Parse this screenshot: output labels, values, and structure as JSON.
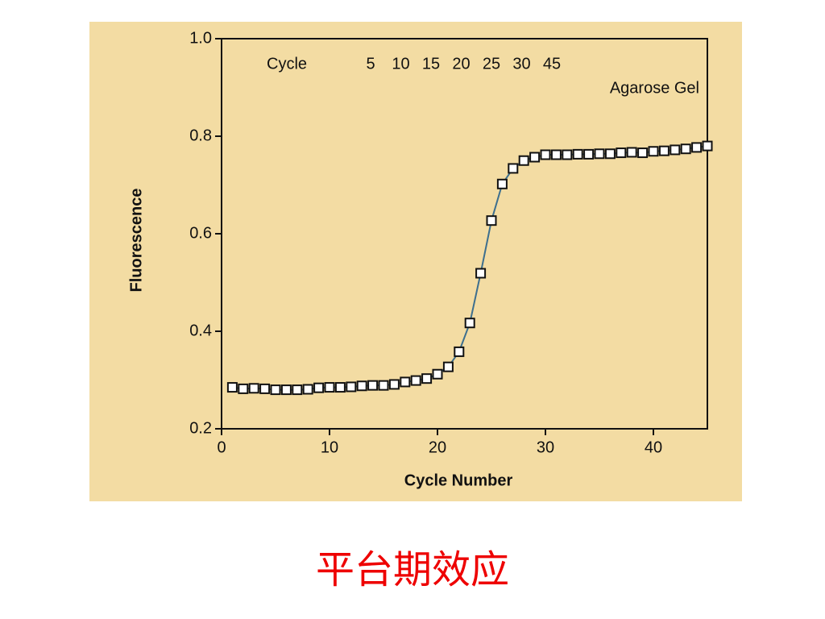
{
  "chart_data": {
    "type": "line",
    "x_label": "Cycle Number",
    "y_label": "Fluorescence",
    "gel_lanes_label": "Cycle",
    "gel_lanes": [
      "5",
      "10",
      "15",
      "20",
      "25",
      "30",
      "45"
    ],
    "gel_label": "Agarose Gel",
    "x": [
      1,
      2,
      3,
      4,
      5,
      6,
      7,
      8,
      9,
      10,
      11,
      12,
      13,
      14,
      15,
      16,
      17,
      18,
      19,
      20,
      21,
      22,
      23,
      24,
      25,
      26,
      27,
      28,
      29,
      30,
      31,
      32,
      33,
      34,
      35,
      36,
      37,
      38,
      39,
      40,
      41,
      42,
      43,
      44,
      45
    ],
    "values": [
      0.285,
      0.282,
      0.283,
      0.282,
      0.28,
      0.28,
      0.28,
      0.281,
      0.284,
      0.285,
      0.285,
      0.286,
      0.288,
      0.289,
      0.289,
      0.291,
      0.296,
      0.299,
      0.303,
      0.312,
      0.327,
      0.358,
      0.417,
      0.519,
      0.627,
      0.702,
      0.734,
      0.75,
      0.757,
      0.762,
      0.762,
      0.762,
      0.763,
      0.763,
      0.764,
      0.764,
      0.766,
      0.767,
      0.766,
      0.769,
      0.77,
      0.772,
      0.774,
      0.777,
      0.78
    ],
    "line_color": "#3d6f8e",
    "marker_fill": "#ffffff",
    "marker_stroke": "#111111",
    "background": "#f3dca3",
    "xlim": [
      0,
      45
    ],
    "xticks": [
      0,
      10,
      20,
      30,
      40
    ],
    "ylim": [
      0.2,
      1.0
    ],
    "yticks": [
      0.2,
      0.4,
      0.6,
      0.8,
      {
        "value": 1.0,
        "label": "1.0"
      }
    ]
  },
  "caption": "平台期效应"
}
